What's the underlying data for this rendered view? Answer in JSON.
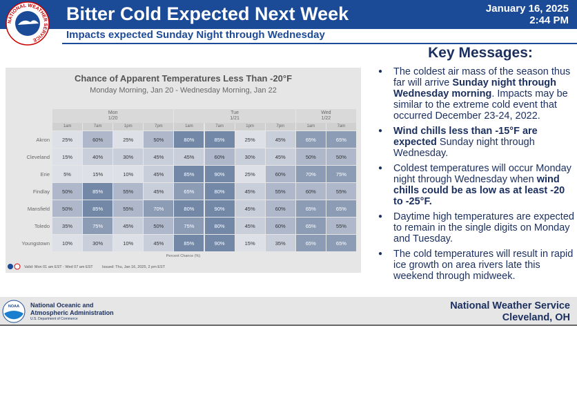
{
  "header": {
    "title": "Bitter Cold Expected Next Week",
    "subtitle": "Impacts expected Sunday Night through Wednesday",
    "date": "January 16, 2025",
    "time": "2:44 PM",
    "logo_text": "NATIONAL WEATHER SERVICE"
  },
  "panel": {
    "title": "Chance of Apparent Temperatures Less Than -20°F",
    "subtitle": "Monday Morning, Jan 20 - Wednesday Morning, Jan 22",
    "days": [
      {
        "name": "Mon",
        "date": "1/20",
        "times": [
          "1am",
          "7am",
          "1pm",
          "7pm"
        ]
      },
      {
        "name": "Tue",
        "date": "1/21",
        "times": [
          "1am",
          "7am",
          "1pm",
          "7pm"
        ]
      },
      {
        "name": "Wed",
        "date": "1/22",
        "times": [
          "1am",
          "7am"
        ]
      }
    ],
    "rows": [
      {
        "label": "Akron",
        "cells": [
          "25%",
          "60%",
          "25%",
          "50%",
          "80%",
          "85%",
          "25%",
          "45%",
          "65%",
          "65%"
        ]
      },
      {
        "label": "Cleveland",
        "cells": [
          "15%",
          "40%",
          "30%",
          "45%",
          "45%",
          "60%",
          "30%",
          "45%",
          "50%",
          "50%"
        ]
      },
      {
        "label": "Erie",
        "cells": [
          "5%",
          "15%",
          "10%",
          "45%",
          "85%",
          "90%",
          "25%",
          "60%",
          "70%",
          "75%"
        ]
      },
      {
        "label": "Findlay",
        "cells": [
          "50%",
          "85%",
          "55%",
          "45%",
          "65%",
          "80%",
          "45%",
          "55%",
          "60%",
          "55%"
        ]
      },
      {
        "label": "Mansfield",
        "cells": [
          "50%",
          "85%",
          "55%",
          "70%",
          "80%",
          "90%",
          "45%",
          "60%",
          "65%",
          "65%"
        ]
      },
      {
        "label": "Toledo",
        "cells": [
          "35%",
          "75%",
          "45%",
          "50%",
          "75%",
          "80%",
          "45%",
          "60%",
          "65%",
          "55%"
        ]
      },
      {
        "label": "Youngstown",
        "cells": [
          "10%",
          "30%",
          "10%",
          "45%",
          "85%",
          "90%",
          "15%",
          "35%",
          "65%",
          "65%"
        ]
      }
    ],
    "axis_label": "Percent Chance (%)",
    "valid": "Valid: Mon 01 am EST - Wed 07 am EST",
    "issued": "Issued: Thu, Jan 16, 2025, 2 pm EST"
  },
  "key_messages": {
    "title": "Key Messages:",
    "bullets": [
      [
        {
          "text": "The coldest air mass of the season thus far will arrive ",
          "bold": false
        },
        {
          "text": "Sunday night through Wednesday morning",
          "bold": true
        },
        {
          "text": ". Impacts may be similar to the extreme cold event that occurred December 23-24, 2022.",
          "bold": false
        }
      ],
      [
        {
          "text": "Wind chills less than -15°F are expected",
          "bold": true
        },
        {
          "text": " Sunday night through Wednesday.",
          "bold": false
        }
      ],
      [
        {
          "text": "Coldest temperatures will occur Monday night through Wednesday when ",
          "bold": false
        },
        {
          "text": "wind chills could be as low as at least -20 to -25°F.",
          "bold": true
        }
      ],
      [
        {
          "text": "Daytime high temperatures are expected to remain in the single digits on Monday and Tuesday.",
          "bold": false
        }
      ],
      [
        {
          "text": "The cold temperatures will result in rapid ice growth on area rivers late this weekend through midweek.",
          "bold": false
        }
      ]
    ]
  },
  "footer": {
    "noaa_logo": "NOAA",
    "noaa_lines": [
      "National Oceanic and",
      "Atmospheric Administration",
      "U.S. Department of Commerce"
    ],
    "office_lines": [
      "National Weather Service",
      "Cleveland, OH"
    ]
  }
}
